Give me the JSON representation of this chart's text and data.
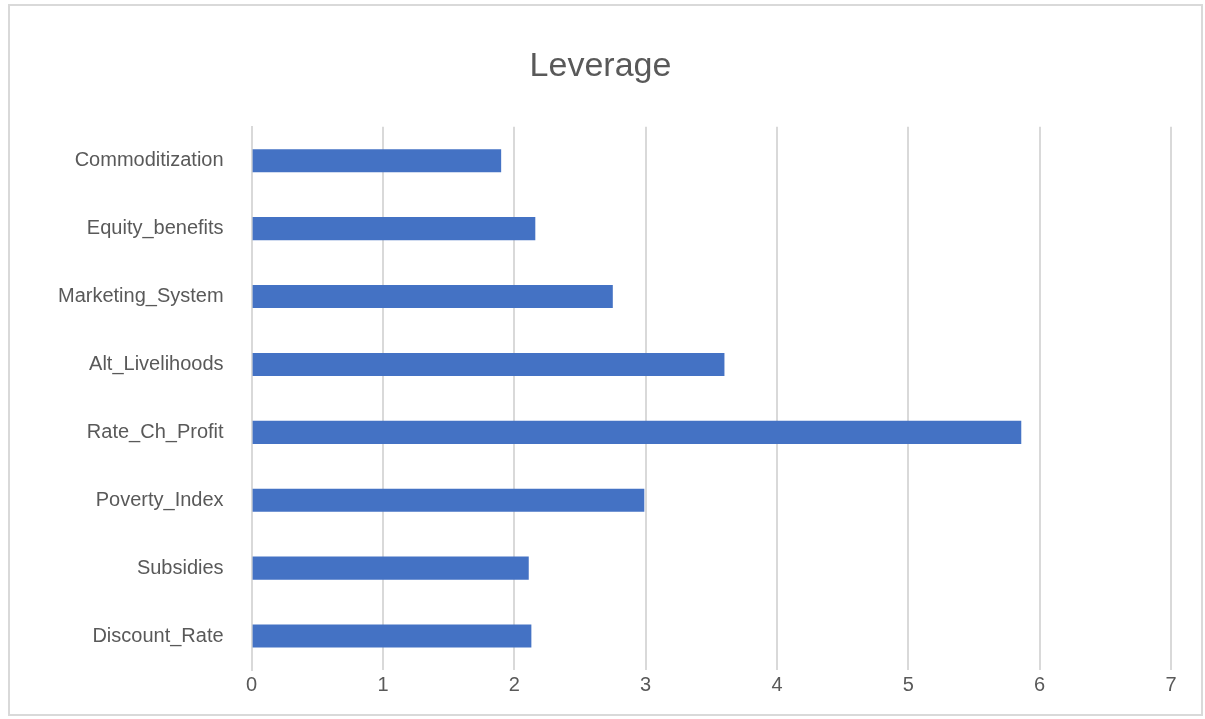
{
  "chart_data": {
    "type": "bar",
    "orientation": "horizontal",
    "title": "Leverage",
    "categories": [
      "Commoditization",
      "Equity_benefits",
      "Marketing_System",
      "Alt_Livelihoods",
      "Rate_Ch_Profit",
      "Poverty_Index",
      "Subsidies",
      "Discount_Rate"
    ],
    "values": [
      1.9,
      2.16,
      2.75,
      3.6,
      5.86,
      2.99,
      2.11,
      2.13
    ],
    "color": "#4472c4",
    "xlim": [
      0,
      7
    ],
    "xticks": [
      0,
      1,
      2,
      3,
      4,
      5,
      6,
      7
    ],
    "grid": "x",
    "legend": false
  }
}
